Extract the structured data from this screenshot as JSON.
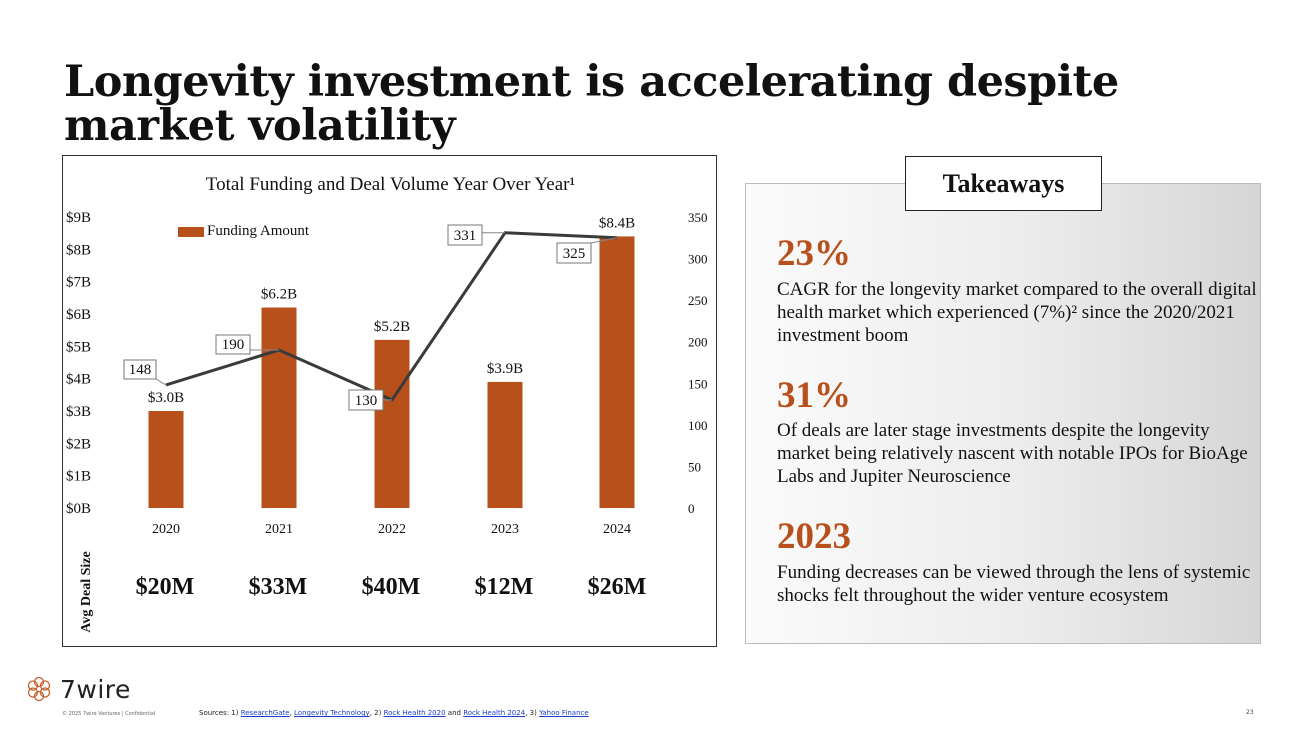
{
  "slide": {
    "title": "Longevity investment is accelerating despite market volatility",
    "page_number": "23"
  },
  "chart_data": {
    "type": "bar+line",
    "title": "Total Funding and Deal Volume Year Over Year¹",
    "legend": "Funding Amount",
    "categories": [
      "2020",
      "2021",
      "2022",
      "2023",
      "2024"
    ],
    "series": [
      {
        "name": "Funding Amount",
        "type": "bar",
        "axis": "left",
        "unit": "$B",
        "values": [
          3.0,
          6.2,
          5.2,
          3.9,
          8.4
        ],
        "labels": [
          "$3.0B",
          "$6.2B",
          "$5.2B",
          "$3.9B",
          "$8.4B"
        ]
      },
      {
        "name": "Deal Volume",
        "type": "line",
        "axis": "right",
        "values": [
          148,
          190,
          130,
          331,
          325
        ],
        "labels": [
          "148",
          "190",
          "130",
          "331",
          "325"
        ]
      }
    ],
    "left_axis": {
      "min": 0,
      "max": 9,
      "ticks": [
        0,
        1,
        2,
        3,
        4,
        5,
        6,
        7,
        8,
        9
      ],
      "tick_labels": [
        "$0B",
        "$1B",
        "$2B",
        "$3B",
        "$4B",
        "$5B",
        "$6B",
        "$7B",
        "$8B",
        "$9B"
      ]
    },
    "right_axis": {
      "min": 0,
      "max": 350,
      "ticks": [
        0,
        50,
        100,
        150,
        200,
        250,
        300,
        350
      ],
      "tick_labels": [
        "0",
        "50",
        "100",
        "150",
        "200",
        "250",
        "300",
        "350"
      ]
    },
    "avg_deal_size": {
      "label": "Avg Deal Size",
      "values": [
        "$20M",
        "$33M",
        "$40M",
        "$12M",
        "$26M"
      ]
    }
  },
  "takeaways": {
    "header": "Takeaways",
    "items": [
      {
        "stat": "23%",
        "text": "CAGR for the longevity market compared to the overall digital health market which experienced (7%)² since the 2020/2021 investment boom"
      },
      {
        "stat": "31%",
        "text": "Of deals are later stage investments despite the longevity market being relatively nascent with notable IPOs for BioAge Labs and Jupiter Neuroscience"
      },
      {
        "stat": "2023",
        "text": "Funding decreases can be viewed through the lens of systemic shocks felt throughout the wider venture ecosystem"
      }
    ]
  },
  "footer": {
    "logo_text": "7wire",
    "copyright": "© 2025 7wire Ventures | Confidential",
    "sources_prefix": "Sources: 1) ",
    "link1": "ResearchGate",
    "sep1": ", ",
    "link2": "Longevity Technology",
    "sep2": ", 2) ",
    "link3": "Rock Health 2020",
    "sep3": " and ",
    "link4": "Rock Health 2024",
    "sep4": ", 3) ",
    "link5": "Yahoo Finance"
  },
  "colors": {
    "accent": "#B8501C",
    "line": "#3a3a3a"
  }
}
